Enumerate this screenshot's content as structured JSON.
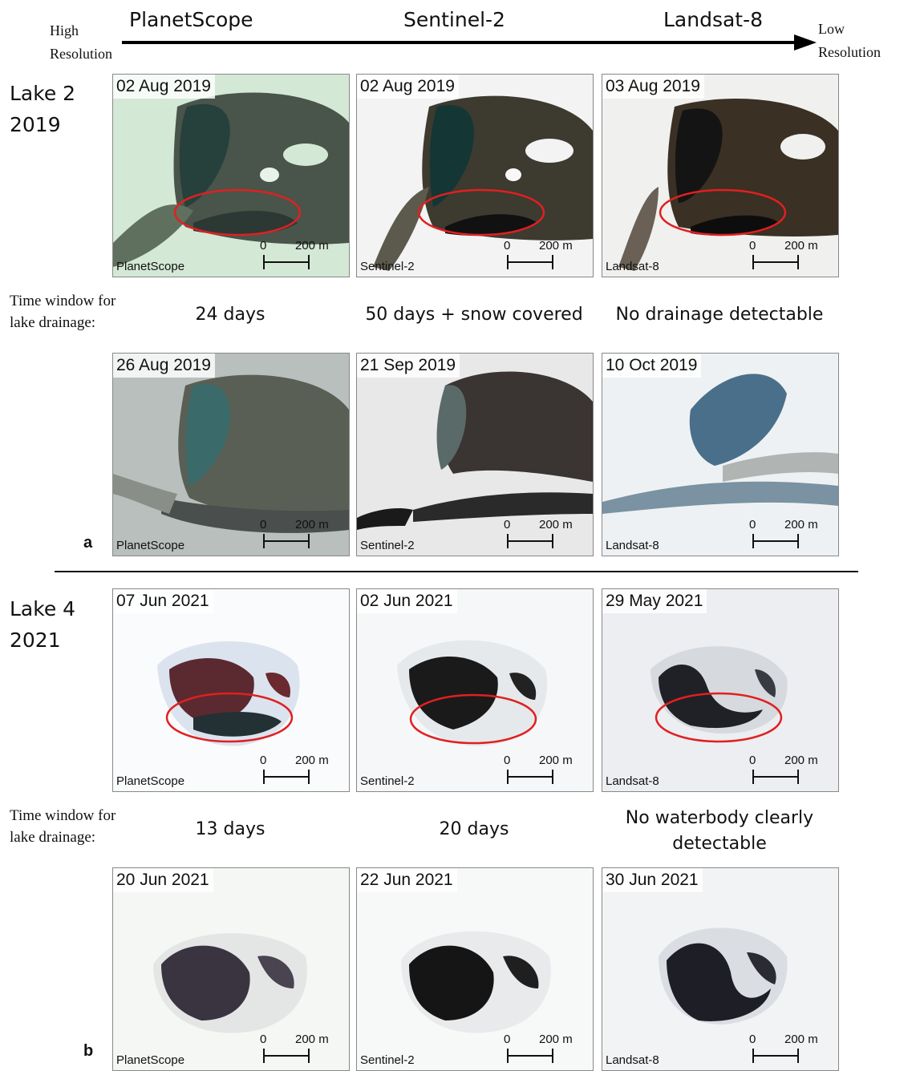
{
  "header": {
    "left_label_1": "High",
    "left_label_2": "Resolution",
    "right_label_1": "Low",
    "right_label_2": "Resolution",
    "sensors": [
      "PlanetScope",
      "Sentinel-2",
      "Landsat-8"
    ]
  },
  "scalebar": {
    "zero": "0",
    "length": "200 m"
  },
  "section_a": {
    "letter": "a",
    "lake_line1": "Lake 2",
    "lake_line2": "2019",
    "time_window_line1": "Time window for",
    "time_window_line2": "lake drainage:",
    "row1": [
      {
        "date": "02 Aug 2019",
        "sensor": "PlanetScope"
      },
      {
        "date": "02 Aug 2019",
        "sensor": "Sentinel-2"
      },
      {
        "date": "03 Aug 2019",
        "sensor": "Landsat-8"
      }
    ],
    "windows": [
      "24 days",
      "50 days + snow covered",
      "No drainage detectable"
    ],
    "row2": [
      {
        "date": "26 Aug 2019",
        "sensor": "PlanetScope"
      },
      {
        "date": "21 Sep 2019",
        "sensor": "Sentinel-2"
      },
      {
        "date": "10 Oct 2019",
        "sensor": "Landsat-8"
      }
    ]
  },
  "section_b": {
    "letter": "b",
    "lake_line1": "Lake 4",
    "lake_line2": "2021",
    "time_window_line1": "Time window for",
    "time_window_line2": "lake drainage:",
    "row1": [
      {
        "date": "07 Jun 2021",
        "sensor": "PlanetScope"
      },
      {
        "date": "02 Jun 2021",
        "sensor": "Sentinel-2"
      },
      {
        "date": "29 May 2021",
        "sensor": "Landsat-8"
      }
    ],
    "windows": [
      "13 days",
      "20 days",
      "No waterbody clearly",
      "detectable"
    ],
    "row2": [
      {
        "date": "20 Jun 2021",
        "sensor": "PlanetScope"
      },
      {
        "date": "22 Jun 2021",
        "sensor": "Sentinel-2"
      },
      {
        "date": "30 Jun 2021",
        "sensor": "Landsat-8"
      }
    ]
  },
  "colors": {
    "ellipse": "#e02020",
    "planet_ice": "#cfe5d2",
    "rock": "#4a5448",
    "lake_water": "#24403c",
    "snow": "#f4f6f6"
  }
}
